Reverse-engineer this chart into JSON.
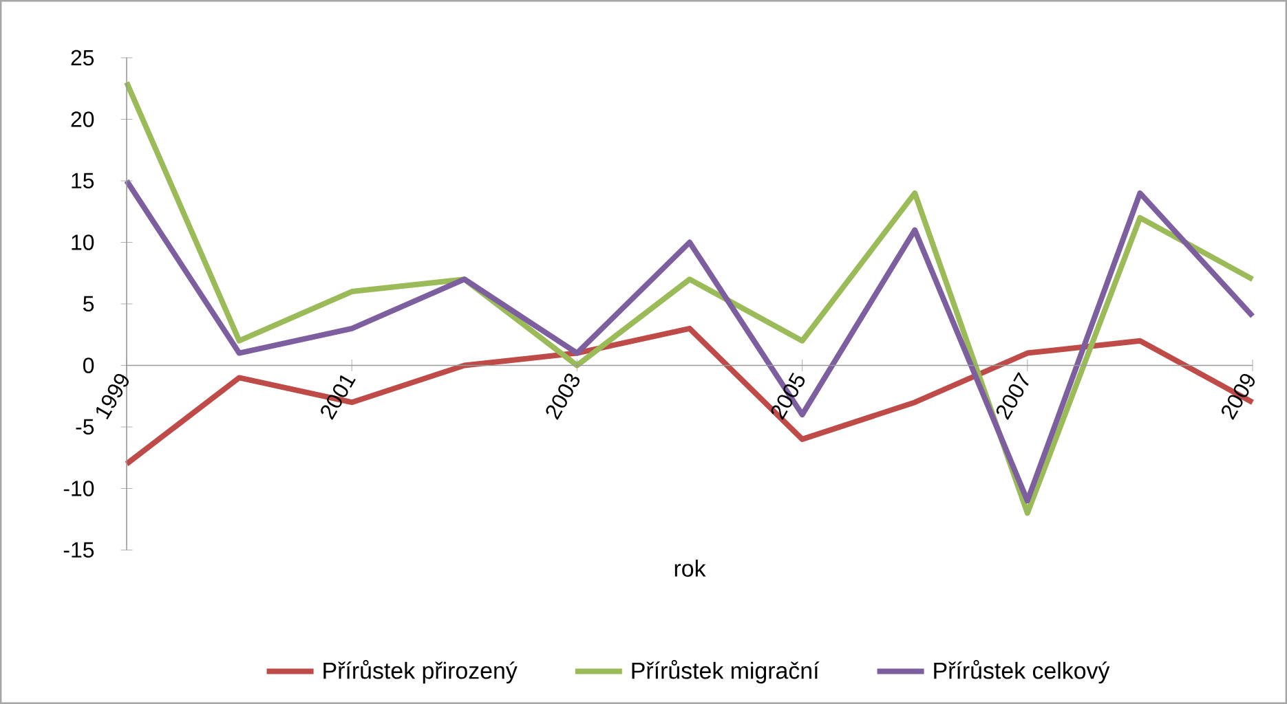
{
  "chart_data": {
    "type": "line",
    "xlabel": "rok",
    "x": [
      1999,
      2000,
      2001,
      2002,
      2003,
      2004,
      2005,
      2006,
      2007,
      2008,
      2009
    ],
    "series": [
      {
        "name": "Přírůstek přirozený",
        "color": "#be4b48",
        "values": [
          -8,
          -1,
          -3,
          0,
          1,
          3,
          -6,
          -3,
          1,
          2,
          -3
        ]
      },
      {
        "name": "Přírůstek migrační",
        "color": "#9bbb59",
        "values": [
          23,
          2,
          6,
          7,
          0,
          7,
          2,
          14,
          -12,
          12,
          7
        ]
      },
      {
        "name": "Přírůstek celkový",
        "color": "#7d5fa0",
        "values": [
          15,
          1,
          3,
          7,
          1,
          10,
          -4,
          11,
          -11,
          14,
          4
        ]
      }
    ],
    "xlim": [
      1999,
      2009
    ],
    "xticks": [
      1999,
      2001,
      2003,
      2005,
      2007,
      2009
    ],
    "ylim": [
      -15,
      25
    ],
    "yticks": [
      -15,
      -10,
      -5,
      0,
      5,
      10,
      15,
      20,
      25
    ],
    "grid": false,
    "legend": "bottom",
    "marker": "none",
    "line_style": "solid"
  }
}
